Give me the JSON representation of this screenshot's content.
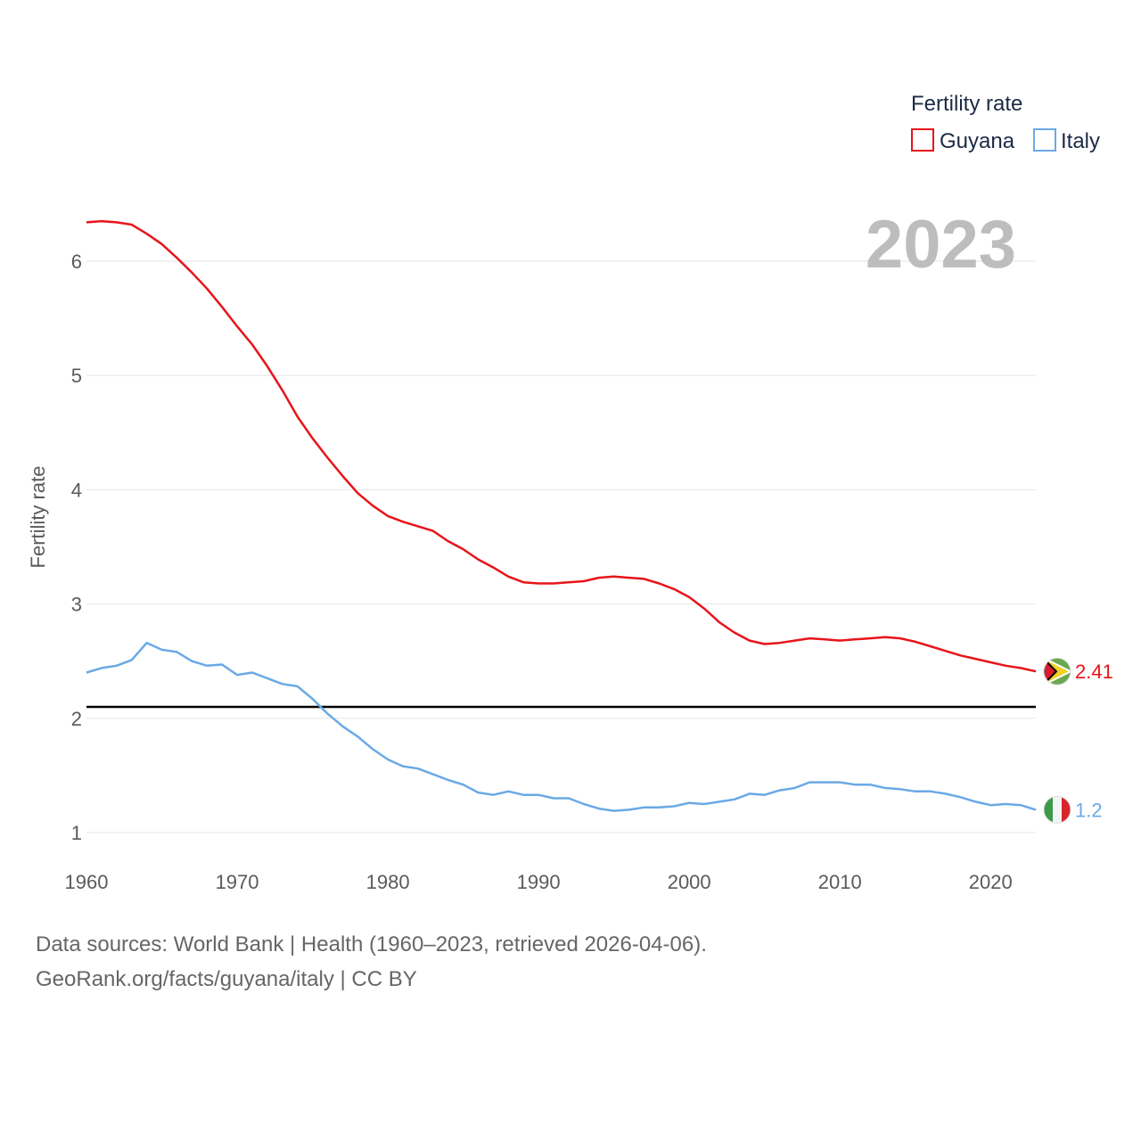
{
  "chart_data": {
    "type": "line",
    "ylabel": "Fertility rate",
    "xlabel": "",
    "xlim": [
      1960,
      2023
    ],
    "ylim": [
      1,
      6.6
    ],
    "xticks": [
      1960,
      1970,
      1980,
      1990,
      2000,
      2010,
      2020
    ],
    "yticks": [
      1,
      2,
      3,
      4,
      5,
      6
    ],
    "legend_title": "Fertility rate",
    "legend_position": "top-right",
    "year_label": "2023",
    "reference_line": {
      "y": 2.1,
      "color": "#000000"
    },
    "x": [
      1960,
      1961,
      1962,
      1963,
      1964,
      1965,
      1966,
      1967,
      1968,
      1969,
      1970,
      1971,
      1972,
      1973,
      1974,
      1975,
      1976,
      1977,
      1978,
      1979,
      1980,
      1981,
      1982,
      1983,
      1984,
      1985,
      1986,
      1987,
      1988,
      1989,
      1990,
      1991,
      1992,
      1993,
      1994,
      1995,
      1996,
      1997,
      1998,
      1999,
      2000,
      2001,
      2002,
      2003,
      2004,
      2005,
      2006,
      2007,
      2008,
      2009,
      2010,
      2011,
      2012,
      2013,
      2014,
      2015,
      2016,
      2017,
      2018,
      2019,
      2020,
      2021,
      2022,
      2023
    ],
    "series": [
      {
        "name": "Guyana",
        "color": "#e8141a",
        "end_label": "2.41",
        "values": [
          6.34,
          6.35,
          6.34,
          6.32,
          6.24,
          6.15,
          6.03,
          5.9,
          5.76,
          5.6,
          5.43,
          5.27,
          5.08,
          4.87,
          4.64,
          4.45,
          4.28,
          4.12,
          3.97,
          3.86,
          3.77,
          3.72,
          3.68,
          3.64,
          3.55,
          3.48,
          3.39,
          3.32,
          3.24,
          3.19,
          3.18,
          3.18,
          3.19,
          3.2,
          3.23,
          3.24,
          3.23,
          3.22,
          3.18,
          3.13,
          3.06,
          2.96,
          2.84,
          2.75,
          2.68,
          2.65,
          2.66,
          2.68,
          2.7,
          2.69,
          2.68,
          2.69,
          2.7,
          2.71,
          2.7,
          2.67,
          2.63,
          2.59,
          2.55,
          2.52,
          2.49,
          2.46,
          2.44,
          2.41
        ]
      },
      {
        "name": "Italy",
        "color": "#6aa9e6",
        "end_label": "1.2",
        "values": [
          2.4,
          2.44,
          2.46,
          2.51,
          2.66,
          2.6,
          2.58,
          2.5,
          2.46,
          2.47,
          2.38,
          2.4,
          2.35,
          2.3,
          2.28,
          2.17,
          2.04,
          1.93,
          1.84,
          1.73,
          1.64,
          1.58,
          1.56,
          1.51,
          1.46,
          1.42,
          1.35,
          1.33,
          1.36,
          1.33,
          1.33,
          1.3,
          1.3,
          1.25,
          1.21,
          1.19,
          1.2,
          1.22,
          1.22,
          1.23,
          1.26,
          1.25,
          1.27,
          1.29,
          1.34,
          1.33,
          1.37,
          1.39,
          1.44,
          1.44,
          1.44,
          1.42,
          1.42,
          1.39,
          1.38,
          1.36,
          1.36,
          1.34,
          1.31,
          1.27,
          1.24,
          1.25,
          1.24,
          1.2
        ]
      }
    ]
  },
  "source": {
    "line1": "Data sources: World Bank | Health (1960–2023, retrieved 2026-04-06).",
    "line2": "GeoRank.org/facts/guyana/italy | CC BY"
  }
}
